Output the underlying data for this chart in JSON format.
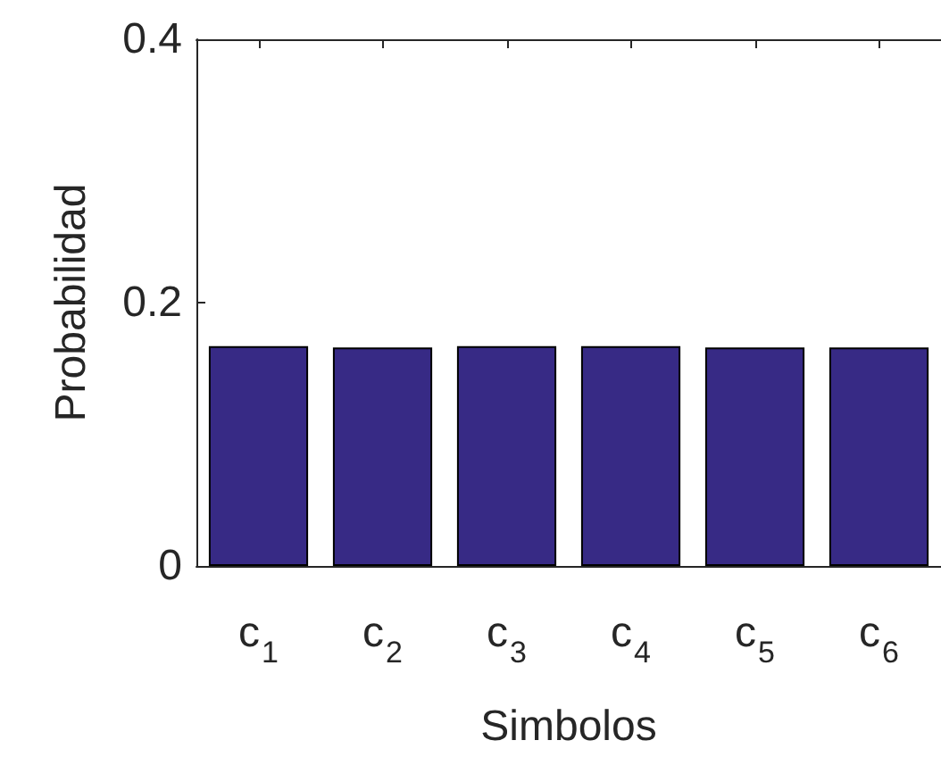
{
  "chart_data": {
    "type": "bar",
    "xlabel": "Simbolos",
    "ylabel": "Probabilidad",
    "categories": [
      "c$_{1}$",
      "c$_{2}$",
      "c$_{3}$",
      "c$_{4}$",
      "c$_{5}$",
      "c$_{6}$"
    ],
    "values": [
      0.167,
      0.166,
      0.167,
      0.167,
      0.166,
      0.166
    ],
    "color": "#372a85",
    "ylim": [
      0,
      0.4
    ],
    "yticks": [
      0,
      0.2,
      0.4
    ],
    "grid": false
  }
}
